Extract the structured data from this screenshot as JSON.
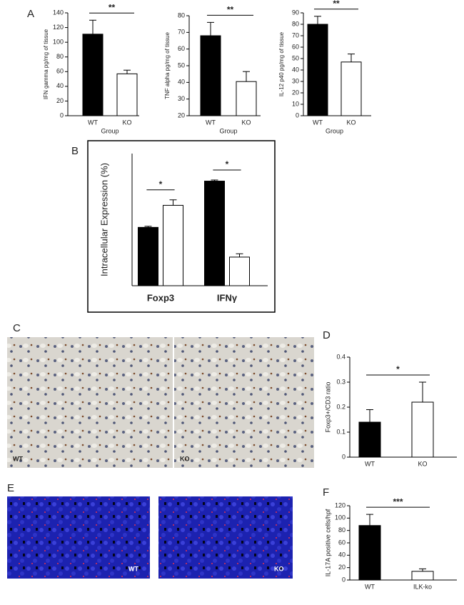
{
  "panel_labels": [
    "A",
    "B",
    "C",
    "D",
    "E",
    "F"
  ],
  "micrographs": {
    "C": [
      "WT",
      "KO"
    ],
    "E": [
      "WT",
      "KO"
    ]
  },
  "chart_data": [
    {
      "type": "bar",
      "ylabel": "IFN gamma pg/mg of tissue",
      "xlabel": "Group",
      "categories": [
        "WT",
        "KO"
      ],
      "values": [
        111,
        57
      ],
      "errors": [
        19,
        5
      ],
      "colors": [
        "#000000",
        "#ffffff"
      ],
      "ylim": [
        0,
        140
      ],
      "yticks": [
        0,
        20,
        40,
        60,
        80,
        100,
        120,
        140
      ],
      "annotations": [
        "**"
      ]
    },
    {
      "type": "bar",
      "ylabel": "TNF alpha pg/mg of tissue",
      "xlabel": "Group",
      "categories": [
        "WT",
        "KO"
      ],
      "values": [
        68,
        40.5
      ],
      "errors": [
        8,
        6
      ],
      "colors": [
        "#000000",
        "#ffffff"
      ],
      "ylim": [
        20,
        80
      ],
      "yticks": [
        20,
        30,
        40,
        50,
        60,
        70,
        80
      ],
      "annotations": [
        "**"
      ]
    },
    {
      "type": "bar",
      "ylabel": "IL-12 p40 pg/mg of tissue",
      "xlabel": "Group",
      "categories": [
        "WT",
        "KO"
      ],
      "values": [
        80,
        47
      ],
      "errors": [
        7,
        7
      ],
      "colors": [
        "#000000",
        "#ffffff"
      ],
      "ylim": [
        0,
        90
      ],
      "yticks": [
        0,
        10,
        20,
        30,
        40,
        50,
        60,
        70,
        80,
        90
      ],
      "annotations": [
        "**"
      ]
    },
    {
      "type": "bar",
      "ylabel": "Intracellular Expression (%)",
      "categories": [
        "Foxp3",
        "IFNγ"
      ],
      "series": [
        {
          "color": "#000000",
          "values": [
            2.65,
            4.75
          ],
          "errors": [
            0.05,
            0.05
          ]
        },
        {
          "color": "#ffffff",
          "values": [
            3.65,
            1.3
          ],
          "errors": [
            0.25,
            0.15
          ]
        }
      ],
      "ylim": [
        0,
        6
      ],
      "annotations": [
        "*",
        "*"
      ]
    },
    {
      "type": "bar",
      "ylabel": "Foxp3+/CD3 ratio",
      "categories": [
        "WT",
        "KO"
      ],
      "values": [
        0.14,
        0.22
      ],
      "errors": [
        0.05,
        0.08
      ],
      "colors": [
        "#000000",
        "#ffffff"
      ],
      "ylim": [
        0,
        0.4
      ],
      "yticks": [
        0,
        0.1,
        0.2,
        0.3,
        0.4
      ],
      "annotations": [
        "*"
      ]
    },
    {
      "type": "bar",
      "ylabel": "IL-17A positive cells/hpf",
      "categories": [
        "WT",
        "ILK-ko"
      ],
      "values": [
        88,
        14
      ],
      "errors": [
        18,
        4
      ],
      "colors": [
        "#000000",
        "#ffffff"
      ],
      "ylim": [
        0,
        120
      ],
      "yticks": [
        0,
        20,
        40,
        60,
        80,
        100,
        120
      ],
      "annotations": [
        "***"
      ]
    }
  ]
}
